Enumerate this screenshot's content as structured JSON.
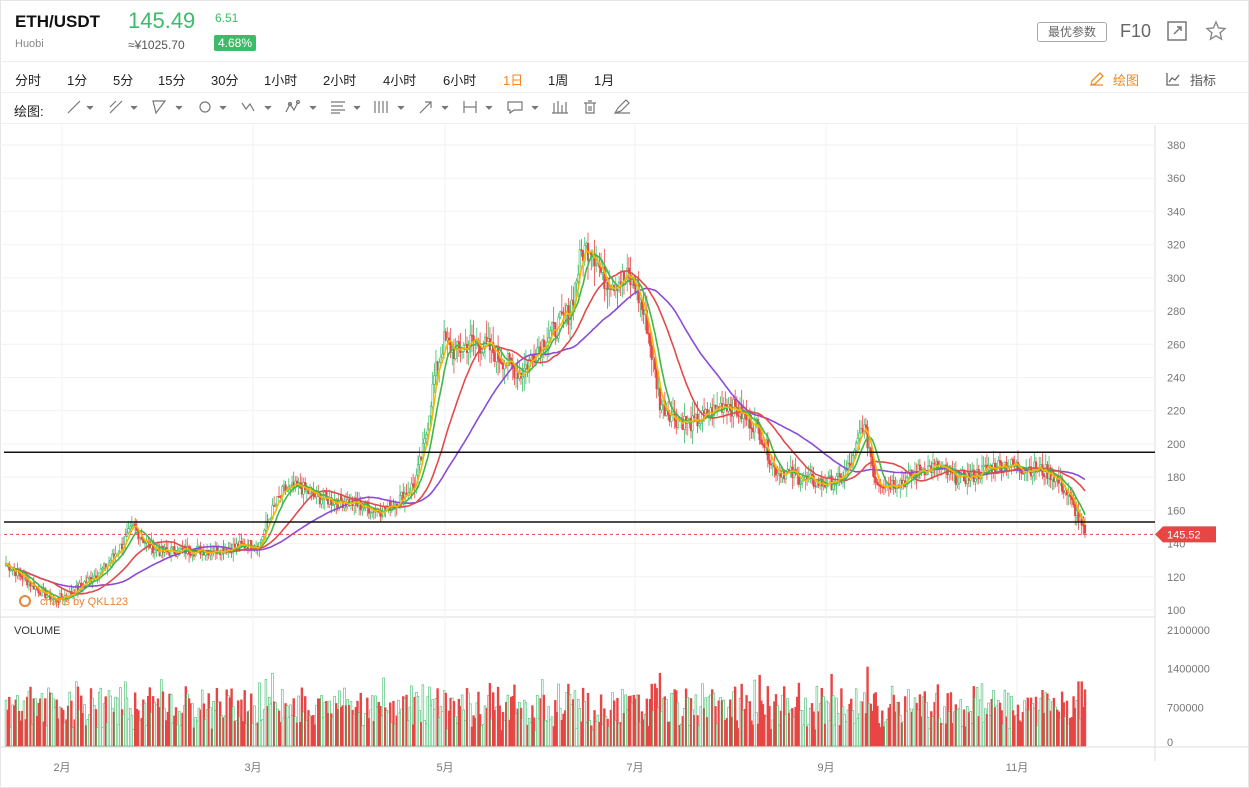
{
  "header": {
    "pair": "ETH/USDT",
    "exchange": "Huobi",
    "price": "145.49",
    "price_cny": "≈¥1025.70",
    "change": "6.51",
    "change_pct": "4.68%",
    "best_params_label": "最优参数",
    "f10_label": "F10",
    "icons": [
      "fullscreen-icon",
      "star-icon"
    ]
  },
  "toolbar": {
    "timeframes": [
      "分时",
      "1分",
      "5分",
      "15分",
      "30分",
      "1小时",
      "2小时",
      "4小时",
      "6小时",
      "1日",
      "1周",
      "1月"
    ],
    "active_timeframe": "1日",
    "draw_label": "绘图",
    "indicator_label": "指标"
  },
  "drawbar": {
    "label": "绘图:",
    "tools": [
      "line-tool-icon",
      "pencil-tool-icon",
      "triangle-tool-icon",
      "circle-tool-icon",
      "wave-tool-icon",
      "pattern-tool-icon",
      "fib-tool-icon",
      "grid-tool-icon",
      "arrow-tool-icon",
      "range-tool-icon",
      "comment-tool-icon",
      "bar-tool-icon",
      "trash-icon",
      "brush-icon"
    ]
  },
  "chart_data": {
    "type": "candlestick",
    "price_axis": [
      "380",
      "360",
      "340",
      "320",
      "300",
      "280",
      "260",
      "240",
      "220",
      "200",
      "180",
      "160",
      "140",
      "120",
      "100"
    ],
    "ylim": [
      100,
      380
    ],
    "volume_axis": [
      "2100000",
      "1400000",
      "700000",
      "0"
    ],
    "volume_title": "VOLUME",
    "months": [
      "2月",
      "3月",
      "5月",
      "7月",
      "9月",
      "11月"
    ],
    "last_price_tag": "145.52",
    "horizontal_levels": [
      195,
      153
    ],
    "watermark": "charts by QKL123",
    "ma_colors": {
      "ma5": "#f5b800",
      "ma10": "#3fb84c",
      "ma30": "#e04b4b",
      "ma60": "#8a4bd6"
    },
    "up_color": "#3dbb6a",
    "down_color": "#e84545",
    "price_anchors": [
      [
        0,
        128
      ],
      [
        10,
        120
      ],
      [
        20,
        112
      ],
      [
        30,
        106
      ],
      [
        40,
        110
      ],
      [
        50,
        118
      ],
      [
        60,
        125
      ],
      [
        70,
        138
      ],
      [
        78,
        150
      ],
      [
        86,
        140
      ],
      [
        95,
        135
      ],
      [
        110,
        136
      ],
      [
        125,
        136
      ],
      [
        140,
        138
      ],
      [
        155,
        140
      ],
      [
        162,
        158
      ],
      [
        170,
        172
      ],
      [
        180,
        174
      ],
      [
        190,
        168
      ],
      [
        200,
        166
      ],
      [
        210,
        165
      ],
      [
        220,
        162
      ],
      [
        230,
        160
      ],
      [
        240,
        166
      ],
      [
        250,
        176
      ],
      [
        256,
        200
      ],
      [
        262,
        240
      ],
      [
        268,
        262
      ],
      [
        275,
        255
      ],
      [
        285,
        262
      ],
      [
        295,
        258
      ],
      [
        305,
        250
      ],
      [
        315,
        242
      ],
      [
        325,
        258
      ],
      [
        335,
        268
      ],
      [
        345,
        280
      ],
      [
        352,
        315
      ],
      [
        358,
        320
      ],
      [
        365,
        300
      ],
      [
        372,
        298
      ],
      [
        380,
        300
      ],
      [
        385,
        295
      ],
      [
        392,
        272
      ],
      [
        400,
        225
      ],
      [
        410,
        215
      ],
      [
        420,
        212
      ],
      [
        430,
        218
      ],
      [
        440,
        225
      ],
      [
        450,
        218
      ],
      [
        460,
        210
      ],
      [
        470,
        185
      ],
      [
        480,
        182
      ],
      [
        490,
        178
      ],
      [
        500,
        176
      ],
      [
        510,
        178
      ],
      [
        518,
        190
      ],
      [
        524,
        212
      ],
      [
        528,
        198
      ],
      [
        532,
        178
      ],
      [
        540,
        176
      ],
      [
        550,
        178
      ],
      [
        560,
        185
      ],
      [
        570,
        186
      ],
      [
        580,
        180
      ],
      [
        590,
        180
      ],
      [
        600,
        185
      ],
      [
        610,
        188
      ],
      [
        620,
        186
      ],
      [
        630,
        185
      ],
      [
        640,
        182
      ],
      [
        648,
        172
      ],
      [
        655,
        158
      ],
      [
        660,
        145
      ]
    ]
  }
}
